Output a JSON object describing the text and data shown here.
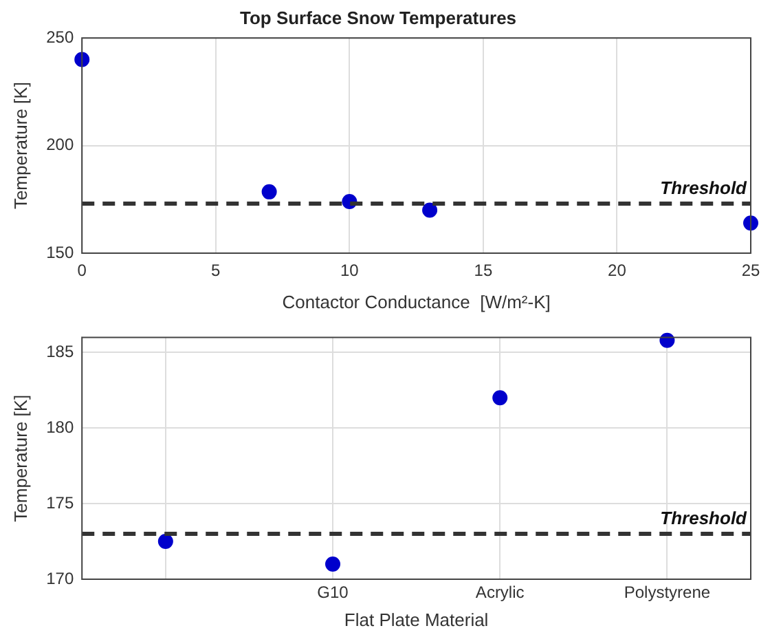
{
  "chart_data": [
    {
      "type": "scatter",
      "title": "Top Surface Snow Temperatures",
      "xlabel": "Contactor Conductance  [W/m²-K]",
      "ylabel": "Temperature [K]",
      "x": [
        0,
        7,
        10,
        13,
        25
      ],
      "series": [
        {
          "color": "#0000cc",
          "values": [
            240,
            178.5,
            174,
            170,
            164
          ]
        }
      ],
      "xlim": [
        0,
        25
      ],
      "xticks": [
        0,
        5,
        10,
        15,
        20,
        25
      ],
      "ylim": [
        150,
        250
      ],
      "yticks": [
        150,
        200,
        250
      ],
      "ref_lines": [
        {
          "axis": "y",
          "value": 173,
          "label": "Threshold",
          "color": "#333333",
          "line_style": "dashed"
        }
      ],
      "grid": true,
      "marker": "circle",
      "legend": false
    },
    {
      "type": "scatter",
      "xlabel": "Flat Plate Material",
      "ylabel": "Temperature [K]",
      "categories": [
        null,
        "G10",
        "Acrylic",
        "Polystyrene"
      ],
      "series": [
        {
          "color": "#0000cc",
          "values": [
            172.5,
            171,
            182,
            185.8
          ]
        }
      ],
      "ylim": [
        170,
        186
      ],
      "yticks": [
        170,
        175,
        180,
        185
      ],
      "ref_lines": [
        {
          "axis": "y",
          "value": 173,
          "label": "Threshold",
          "color": "#333333",
          "line_style": "dashed"
        }
      ],
      "grid": true,
      "marker": "circle",
      "legend": false
    }
  ]
}
